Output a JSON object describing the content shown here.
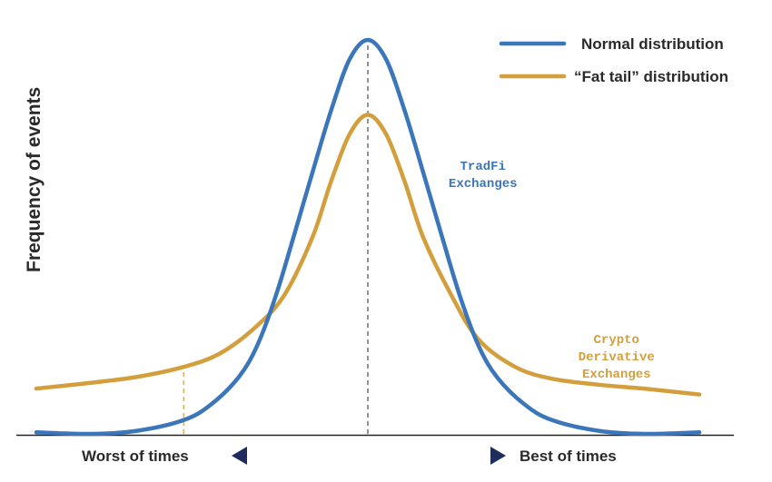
{
  "chart_data": {
    "type": "line",
    "title": "",
    "xlabel": "",
    "ylabel": "Frequency of events",
    "x_range": [
      -3.6,
      3.6
    ],
    "y_range": [
      0,
      1
    ],
    "grid": false,
    "legend_position": "top-right",
    "x_left_label": "Worst of times",
    "x_right_label": "Best of times",
    "series": [
      {
        "name": "Normal distribution",
        "color": "#3a76b9",
        "x": [
          -3.6,
          -3.0,
          -2.5,
          -2.0,
          -1.7,
          -1.4,
          -1.2,
          -1.0,
          -0.8,
          -0.6,
          -0.4,
          -0.2,
          0.0,
          0.2,
          0.4,
          0.6,
          0.8,
          1.0,
          1.2,
          1.4,
          1.7,
          2.0,
          2.5,
          3.0,
          3.6
        ],
        "y": [
          0.004,
          0.0,
          0.008,
          0.035,
          0.075,
          0.145,
          0.225,
          0.35,
          0.505,
          0.665,
          0.82,
          0.95,
          1.0,
          0.95,
          0.82,
          0.665,
          0.505,
          0.35,
          0.225,
          0.145,
          0.075,
          0.035,
          0.008,
          0.0,
          0.004
        ]
      },
      {
        "name": "“Fat tail” distribution",
        "color": "#d39f3d",
        "x": [
          -3.6,
          -3.0,
          -2.5,
          -2.0,
          -1.6,
          -1.2,
          -0.9,
          -0.6,
          -0.4,
          -0.2,
          0.0,
          0.2,
          0.4,
          0.6,
          0.9,
          1.2,
          1.6,
          2.0,
          2.5,
          3.0,
          3.6
        ],
        "y": [
          0.115,
          0.13,
          0.145,
          0.17,
          0.205,
          0.275,
          0.355,
          0.5,
          0.64,
          0.76,
          0.81,
          0.76,
          0.64,
          0.5,
          0.355,
          0.24,
          0.17,
          0.14,
          0.125,
          0.115,
          0.1
        ]
      }
    ],
    "annotations": [
      {
        "text": [
          "TradFi",
          "Exchanges"
        ],
        "color": "#3a76b9",
        "x": 1.25,
        "y": 0.67
      },
      {
        "text": [
          "Crypto",
          "Derivative",
          "Exchanges"
        ],
        "color": "#d39f3d",
        "x": 2.7,
        "y": 0.23
      }
    ],
    "reference_lines": [
      {
        "x": 0.0,
        "style": "dashed",
        "color": "#4a4a5a"
      },
      {
        "x": -2.0,
        "style": "dashed",
        "color": "#d39f3d"
      }
    ]
  }
}
